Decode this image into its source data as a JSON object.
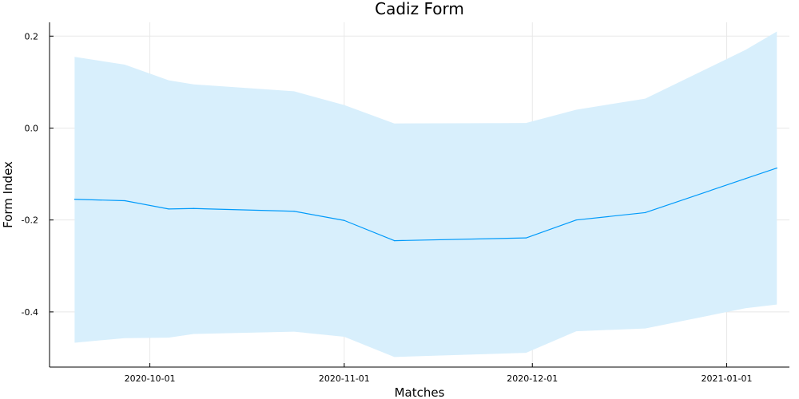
{
  "chart_data": {
    "type": "line",
    "title": "Cadiz Form",
    "xlabel": "Matches",
    "ylabel": "Form Index",
    "xlim": [
      "2020-09-15",
      "2021-01-11"
    ],
    "ylim": [
      -0.52,
      0.23
    ],
    "xticks": [
      "2020-10-01",
      "2020-11-01",
      "2020-12-01",
      "2021-01-01"
    ],
    "yticks": [
      0.2,
      0.0,
      -0.2,
      -0.4
    ],
    "ytick_labels": [
      "0.2",
      "0.0",
      "-0.2",
      "-0.4"
    ],
    "grid": true,
    "legend": false,
    "series": [
      {
        "x": [
          "2020-09-19",
          "2020-09-27",
          "2020-10-04",
          "2020-10-08",
          "2020-10-24",
          "2020-11-01",
          "2020-11-09",
          "2020-11-30",
          "2020-12-08",
          "2020-12-19",
          "2021-01-04",
          "2021-01-09"
        ],
        "values": [
          -0.155,
          -0.158,
          -0.176,
          -0.175,
          -0.181,
          -0.201,
          -0.245,
          -0.239,
          -0.2,
          -0.184,
          -0.11,
          -0.087
        ],
        "lower": [
          -0.467,
          -0.457,
          -0.456,
          -0.448,
          -0.443,
          -0.454,
          -0.498,
          -0.489,
          -0.442,
          -0.436,
          -0.392,
          -0.384
        ],
        "upper": [
          0.155,
          0.138,
          0.104,
          0.095,
          0.08,
          0.05,
          0.01,
          0.011,
          0.04,
          0.064,
          0.17,
          0.21
        ],
        "color": "#009AFA",
        "band_color": "#D8EFFC"
      }
    ]
  }
}
